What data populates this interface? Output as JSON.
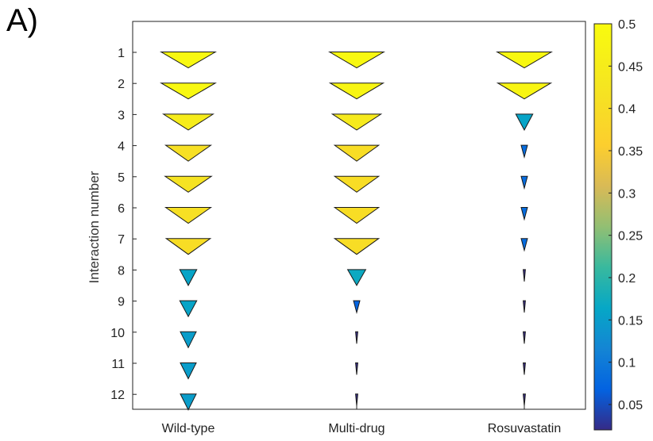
{
  "panel_label": "A)",
  "chart_data": {
    "type": "scatter",
    "marker": "downward-triangle",
    "title": "",
    "xlabel": "",
    "ylabel": "Interaction number",
    "categories": [
      "Wild-type",
      "Multi-drug",
      "Rosuvastatin"
    ],
    "y_ticks": [
      "1",
      "2",
      "3",
      "4",
      "5",
      "6",
      "7",
      "8",
      "9",
      "10",
      "11",
      "12"
    ],
    "ylim": [
      0,
      12.5
    ],
    "y_reversed": true,
    "marker_size_and_color_encode": "value",
    "series": [
      {
        "name": "Wild-type",
        "values": [
          0.49,
          0.49,
          0.45,
          0.41,
          0.42,
          0.41,
          0.4,
          0.16,
          0.16,
          0.15,
          0.15,
          0.15
        ]
      },
      {
        "name": "Multi-drug",
        "values": [
          0.49,
          0.48,
          0.44,
          0.4,
          0.4,
          0.4,
          0.4,
          0.17,
          0.07,
          0.02,
          0.02,
          0.02
        ]
      },
      {
        "name": "Rosuvastatin",
        "values": [
          0.49,
          0.48,
          0.16,
          0.08,
          0.08,
          0.08,
          0.08,
          0.02,
          0.02,
          0.02,
          0.02,
          0.02
        ]
      }
    ],
    "colorbar": {
      "colormap": "parula",
      "range": [
        0.02,
        0.5
      ],
      "ticks": [
        "0.05",
        "0.1",
        "0.15",
        "0.2",
        "0.25",
        "0.3",
        "0.35",
        "0.4",
        "0.45",
        "0.5"
      ],
      "position": "right"
    },
    "grid": false
  }
}
